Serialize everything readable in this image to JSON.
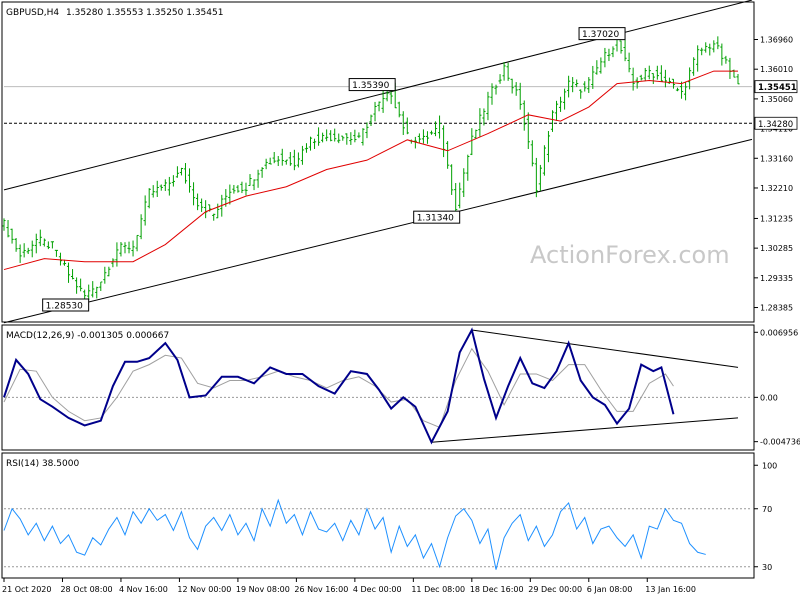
{
  "chart_data": [
    {
      "type": "candlestick",
      "header": {
        "symbol": "GBPUSD,H4",
        "ohlc": "1.35280 1.35553 1.35250 1.35451"
      },
      "y_range": [
        1.2805,
        1.3752
      ],
      "y_ticks": [
        "1.36960",
        "1.36010",
        "1.35060",
        "1.34110",
        "1.33160",
        "1.32210",
        "1.31235",
        "1.30285",
        "1.29335",
        "1.28385"
      ],
      "y_tick_values": [
        1.3696,
        1.3601,
        1.3506,
        1.3411,
        1.3316,
        1.3221,
        1.31235,
        1.30285,
        1.29335,
        1.28385
      ],
      "current_price": {
        "label": "1.35451",
        "value": 1.35451
      },
      "support_level": {
        "label": "1.34280",
        "value": 1.3428
      },
      "annotations": [
        {
          "label": "1.28530",
          "value": 1.2853,
          "bar": 20
        },
        {
          "label": "1.35390",
          "value": 1.3539,
          "bar": 96
        },
        {
          "label": "1.31340",
          "value": 1.3134,
          "bar": 112
        },
        {
          "label": "1.37020",
          "value": 1.3702,
          "bar": 153
        }
      ],
      "channel": {
        "upper": [
          [
            0,
            1.3215
          ],
          [
            164,
            1.3752
          ]
        ],
        "lower": [
          [
            20,
            1.2853
          ],
          [
            185,
            1.3375
          ]
        ]
      },
      "moving_average": [
        [
          0,
          1.296
        ],
        [
          10,
          1.2995
        ],
        [
          20,
          1.2985
        ],
        [
          32,
          1.2985
        ],
        [
          40,
          1.304
        ],
        [
          50,
          1.3145
        ],
        [
          60,
          1.3195
        ],
        [
          70,
          1.3225
        ],
        [
          80,
          1.328
        ],
        [
          90,
          1.331
        ],
        [
          100,
          1.3375
        ],
        [
          110,
          1.334
        ],
        [
          120,
          1.3395
        ],
        [
          130,
          1.3455
        ],
        [
          138,
          1.3435
        ],
        [
          145,
          1.348
        ],
        [
          152,
          1.3555
        ],
        [
          160,
          1.3565
        ],
        [
          168,
          1.3555
        ],
        [
          176,
          1.3595
        ],
        [
          182,
          1.3595
        ]
      ],
      "price_path": [
        [
          0,
          1.3105
        ],
        [
          4,
          1.3005
        ],
        [
          8,
          1.3055
        ],
        [
          12,
          1.3035
        ],
        [
          16,
          1.2945
        ],
        [
          20,
          1.2875
        ],
        [
          24,
          1.2925
        ],
        [
          28,
          1.3025
        ],
        [
          32,
          1.3035
        ],
        [
          36,
          1.3205
        ],
        [
          40,
          1.3225
        ],
        [
          44,
          1.3275
        ],
        [
          48,
          1.3175
        ],
        [
          52,
          1.3135
        ],
        [
          56,
          1.3215
        ],
        [
          60,
          1.3225
        ],
        [
          64,
          1.3295
        ],
        [
          68,
          1.3315
        ],
        [
          72,
          1.3305
        ],
        [
          76,
          1.3375
        ],
        [
          80,
          1.3385
        ],
        [
          84,
          1.3385
        ],
        [
          88,
          1.3375
        ],
        [
          92,
          1.3475
        ],
        [
          96,
          1.3525
        ],
        [
          100,
          1.3385
        ],
        [
          104,
          1.3375
        ],
        [
          108,
          1.3415
        ],
        [
          112,
          1.3165
        ],
        [
          116,
          1.3375
        ],
        [
          120,
          1.3505
        ],
        [
          124,
          1.3605
        ],
        [
          128,
          1.3495
        ],
        [
          132,
          1.3225
        ],
        [
          136,
          1.3455
        ],
        [
          140,
          1.3555
        ],
        [
          144,
          1.3535
        ],
        [
          148,
          1.3625
        ],
        [
          152,
          1.3695
        ],
        [
          156,
          1.3555
        ],
        [
          160,
          1.3595
        ],
        [
          164,
          1.3565
        ],
        [
          168,
          1.3525
        ],
        [
          172,
          1.3655
        ],
        [
          176,
          1.3685
        ],
        [
          180,
          1.3595
        ],
        [
          182,
          1.3545
        ]
      ],
      "bar_count": 183,
      "x_tick_labels": [
        "21 Oct 2020",
        "28 Oct 08:00",
        "4 Nov 16:00",
        "12 Nov 00:00",
        "19 Nov 08:00",
        "26 Nov 16:00",
        "4 Dec 00:00",
        "11 Dec 08:00",
        "18 Dec 16:00",
        "29 Dec 00:00",
        "6 Jan 08:00",
        "13 Jan 16:00"
      ],
      "x_tick_bars": [
        0,
        14.5,
        29,
        43.5,
        58,
        72.5,
        87,
        101.5,
        116,
        130.5,
        145,
        159.5
      ]
    },
    {
      "type": "line",
      "header": "MACD(12,26,9) -0.001305 0.000667",
      "y_range": [
        -0.0052,
        0.0072
      ],
      "y_ticks": [
        "0.006956",
        "0.00",
        "-0.004736"
      ],
      "y_tick_values": [
        0.006956,
        0.0,
        -0.004736
      ],
      "series": [
        {
          "values": [
            [
              0,
              0.0
            ],
            [
              3,
              0.004
            ],
            [
              6,
              0.0025
            ],
            [
              9,
              -0.0002
            ],
            [
              12,
              -0.001
            ],
            [
              16,
              -0.0022
            ],
            [
              20,
              -0.003
            ],
            [
              24,
              -0.0025
            ],
            [
              27,
              0.0012
            ],
            [
              30,
              0.0038
            ],
            [
              33,
              0.0038
            ],
            [
              36,
              0.0042
            ],
            [
              40,
              0.0058
            ],
            [
              43,
              0.004
            ],
            [
              46,
              0.0
            ],
            [
              50,
              0.0002
            ],
            [
              54,
              0.0022
            ],
            [
              58,
              0.0022
            ],
            [
              62,
              0.0015
            ],
            [
              66,
              0.0032
            ],
            [
              70,
              0.0025
            ],
            [
              74,
              0.0025
            ],
            [
              78,
              0.0012
            ],
            [
              82,
              0.0004
            ],
            [
              86,
              0.0028
            ],
            [
              90,
              0.0025
            ],
            [
              93,
              0.0008
            ],
            [
              96,
              -0.0012
            ],
            [
              99,
              0.0
            ],
            [
              102,
              -0.001
            ],
            [
              106,
              -0.0048
            ],
            [
              110,
              -0.0015
            ],
            [
              113,
              0.0048
            ],
            [
              116,
              0.0072
            ],
            [
              119,
              0.002
            ],
            [
              122,
              -0.0022
            ],
            [
              125,
              0.0012
            ],
            [
              128,
              0.0042
            ],
            [
              131,
              0.0015
            ],
            [
              134,
              0.001
            ],
            [
              137,
              0.0028
            ],
            [
              140,
              0.0058
            ],
            [
              143,
              0.0018
            ],
            [
              146,
              0.0
            ],
            [
              149,
              -0.0008
            ],
            [
              152,
              -0.0028
            ],
            [
              155,
              -0.0012
            ],
            [
              158,
              0.0035
            ],
            [
              161,
              0.0028
            ],
            [
              163,
              0.0032
            ],
            [
              166,
              -0.0018
            ]
          ]
        },
        {
          "values": [
            [
              0,
              -0.0005
            ],
            [
              4,
              0.003
            ],
            [
              8,
              0.0028
            ],
            [
              12,
              0.0
            ],
            [
              16,
              -0.0015
            ],
            [
              20,
              -0.0025
            ],
            [
              24,
              -0.0022
            ],
            [
              28,
              0.0
            ],
            [
              32,
              0.0028
            ],
            [
              36,
              0.0035
            ],
            [
              40,
              0.0045
            ],
            [
              44,
              0.0042
            ],
            [
              48,
              0.0015
            ],
            [
              52,
              0.001
            ],
            [
              56,
              0.0018
            ],
            [
              60,
              0.0018
            ],
            [
              64,
              0.0022
            ],
            [
              68,
              0.0028
            ],
            [
              72,
              0.0022
            ],
            [
              76,
              0.0018
            ],
            [
              80,
              0.001
            ],
            [
              84,
              0.0018
            ],
            [
              88,
              0.0022
            ],
            [
              92,
              0.0012
            ],
            [
              96,
              -0.0005
            ],
            [
              100,
              -0.0002
            ],
            [
              104,
              -0.0025
            ],
            [
              108,
              -0.0032
            ],
            [
              112,
              0.0018
            ],
            [
              116,
              0.0052
            ],
            [
              120,
              0.0028
            ],
            [
              124,
              -0.0008
            ],
            [
              128,
              0.0025
            ],
            [
              132,
              0.0025
            ],
            [
              136,
              0.0018
            ],
            [
              140,
              0.0035
            ],
            [
              144,
              0.0035
            ],
            [
              148,
              0.0008
            ],
            [
              152,
              -0.0015
            ],
            [
              156,
              -0.0015
            ],
            [
              160,
              0.0015
            ],
            [
              164,
              0.0025
            ],
            [
              166,
              0.0012
            ]
          ]
        }
      ],
      "trendlines": {
        "upper": [
          [
            116,
            0.0072
          ],
          [
            182,
            0.0032
          ]
        ],
        "lower": [
          [
            106,
            -0.0048
          ],
          [
            182,
            -0.0022
          ]
        ]
      }
    },
    {
      "type": "line",
      "header": "RSI(14) 38.5000",
      "y_range": [
        25,
        105
      ],
      "y_ticks": [
        "100",
        "70",
        "30"
      ],
      "y_tick_values": [
        100,
        70,
        30
      ],
      "levels": [
        70,
        30
      ],
      "series": [
        {
          "values": [
            [
              0,
              55
            ],
            [
              2,
              70
            ],
            [
              4,
              63
            ],
            [
              6,
              52
            ],
            [
              8,
              60
            ],
            [
              10,
              48
            ],
            [
              12,
              58
            ],
            [
              14,
              46
            ],
            [
              16,
              52
            ],
            [
              18,
              40
            ],
            [
              20,
              38
            ],
            [
              22,
              50
            ],
            [
              24,
              45
            ],
            [
              26,
              56
            ],
            [
              28,
              64
            ],
            [
              30,
              52
            ],
            [
              32,
              68
            ],
            [
              34,
              60
            ],
            [
              36,
              70
            ],
            [
              38,
              62
            ],
            [
              40,
              66
            ],
            [
              42,
              55
            ],
            [
              44,
              68
            ],
            [
              46,
              50
            ],
            [
              48,
              42
            ],
            [
              50,
              58
            ],
            [
              52,
              64
            ],
            [
              54,
              55
            ],
            [
              56,
              66
            ],
            [
              58,
              52
            ],
            [
              60,
              60
            ],
            [
              62,
              48
            ],
            [
              64,
              70
            ],
            [
              66,
              58
            ],
            [
              68,
              76
            ],
            [
              70,
              60
            ],
            [
              72,
              66
            ],
            [
              74,
              52
            ],
            [
              76,
              68
            ],
            [
              78,
              56
            ],
            [
              80,
              54
            ],
            [
              82,
              60
            ],
            [
              84,
              48
            ],
            [
              86,
              62
            ],
            [
              88,
              52
            ],
            [
              90,
              70
            ],
            [
              92,
              56
            ],
            [
              94,
              64
            ],
            [
              96,
              40
            ],
            [
              98,
              58
            ],
            [
              100,
              44
            ],
            [
              102,
              52
            ],
            [
              104,
              36
            ],
            [
              106,
              46
            ],
            [
              108,
              30
            ],
            [
              110,
              50
            ],
            [
              112,
              65
            ],
            [
              114,
              70
            ],
            [
              116,
              62
            ],
            [
              118,
              46
            ],
            [
              120,
              56
            ],
            [
              122,
              28
            ],
            [
              124,
              50
            ],
            [
              126,
              60
            ],
            [
              128,
              66
            ],
            [
              130,
              48
            ],
            [
              132,
              58
            ],
            [
              134,
              44
            ],
            [
              136,
              52
            ],
            [
              138,
              68
            ],
            [
              140,
              74
            ],
            [
              142,
              56
            ],
            [
              144,
              64
            ],
            [
              146,
              46
            ],
            [
              148,
              56
            ],
            [
              150,
              58
            ],
            [
              152,
              50
            ],
            [
              154,
              44
            ],
            [
              156,
              52
            ],
            [
              158,
              36
            ],
            [
              160,
              58
            ],
            [
              162,
              56
            ],
            [
              164,
              70
            ],
            [
              166,
              62
            ],
            [
              168,
              60
            ],
            [
              170,
              46
            ],
            [
              172,
              40
            ],
            [
              174,
              38.5
            ]
          ]
        }
      ]
    }
  ],
  "watermark": "ActionForex.com"
}
